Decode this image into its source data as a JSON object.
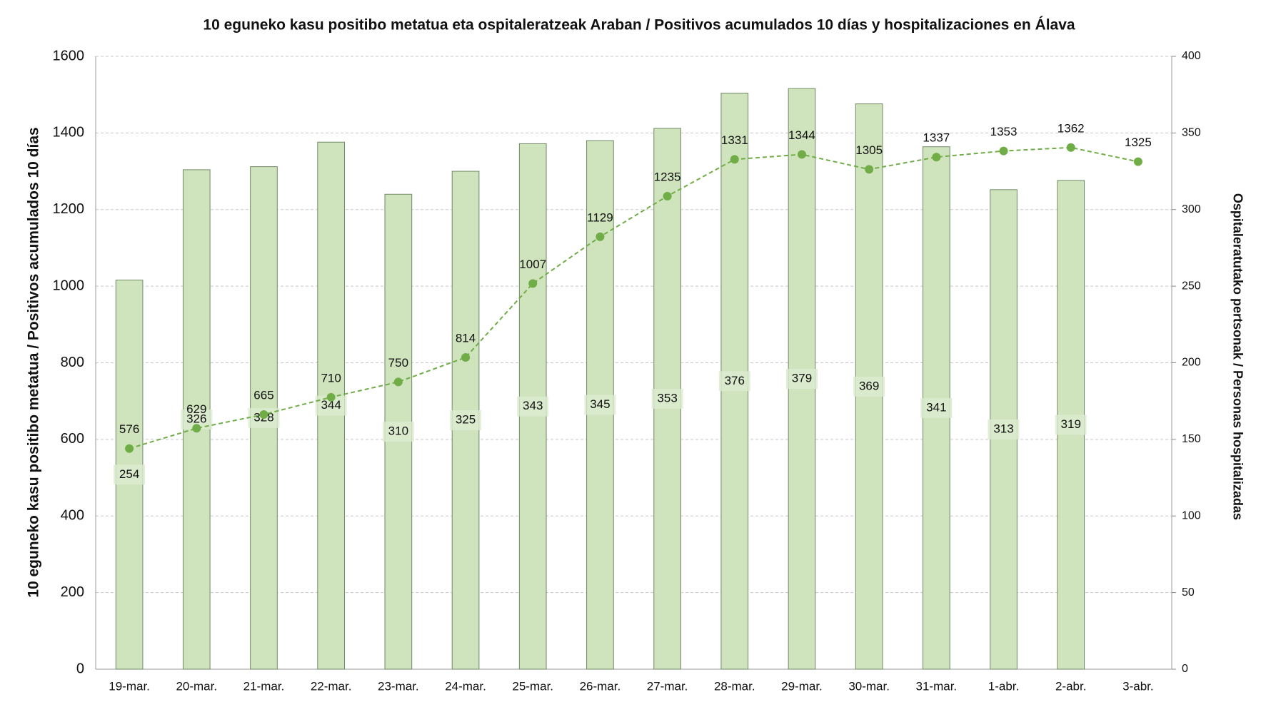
{
  "chart_data": {
    "type": "bar+line",
    "title": "10 eguneko kasu positibo metatua eta ospitaleratzeak Araban  / Positivos acumulados 10 días y hospitalizaciones en Álava",
    "y_label": "10 eguneko kasu positibo metatua  / Positivos acumulados 10 días",
    "y2_label": "Ospitaleratutako pertsonak  / Personas hospitalizadas",
    "categories": [
      "19-mar.",
      "20-mar.",
      "21-mar.",
      "22-mar.",
      "23-mar.",
      "24-mar.",
      "25-mar.",
      "26-mar.",
      "27-mar.",
      "28-mar.",
      "29-mar.",
      "30-mar.",
      "31-mar.",
      "1-abr.",
      "2-abr.",
      "3-abr."
    ],
    "series": [
      {
        "type": "bar",
        "axis": "y2",
        "color": "#cfe3bd",
        "values": [
          254,
          326,
          328,
          344,
          310,
          325,
          343,
          345,
          353,
          376,
          379,
          369,
          341,
          313,
          319,
          null
        ]
      },
      {
        "type": "line",
        "axis": "y",
        "color": "#70ad47",
        "values": [
          576,
          629,
          665,
          710,
          750,
          814,
          1007,
          1129,
          1235,
          1331,
          1344,
          1305,
          1337,
          1353,
          1362,
          1325
        ]
      }
    ],
    "ylim": [
      0,
      1600
    ],
    "yticks": [
      0,
      200,
      400,
      600,
      800,
      1000,
      1200,
      1400,
      1600
    ],
    "y2lim": [
      0,
      400
    ],
    "y2ticks": [
      0,
      50,
      100,
      150,
      200,
      250,
      300,
      350,
      400
    ],
    "grid": true
  }
}
